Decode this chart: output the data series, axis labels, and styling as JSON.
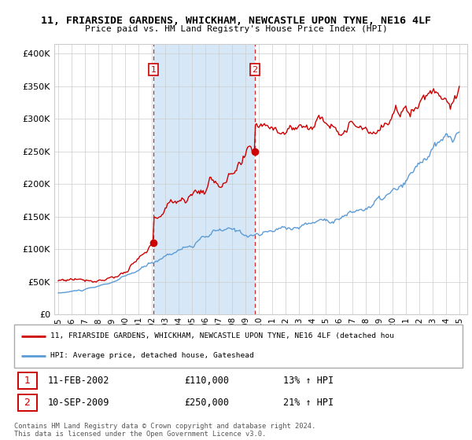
{
  "title_line1": "11, FRIARSIDE GARDENS, WHICKHAM, NEWCASTLE UPON TYNE, NE16 4LF",
  "title_line2": "Price paid vs. HM Land Registry's House Price Index (HPI)",
  "ytick_values": [
    0,
    50000,
    100000,
    150000,
    200000,
    250000,
    300000,
    350000,
    400000
  ],
  "ylim": [
    0,
    415000
  ],
  "hpi_color": "#5b9bd5",
  "hpi_fill_color": "#d6e8f7",
  "price_color": "#cc0000",
  "background_color": "#ffffff",
  "grid_color": "#cccccc",
  "purchase1_x": 2002.12,
  "purchase1_y": 110000,
  "purchase2_x": 2009.7,
  "purchase2_y": 250000,
  "legend_line1": "11, FRIARSIDE GARDENS, WHICKHAM, NEWCASTLE UPON TYNE, NE16 4LF (detached hou",
  "legend_line2": "HPI: Average price, detached house, Gateshead",
  "info1_date": "11-FEB-2002",
  "info1_price": "£110,000",
  "info1_hpi": "13% ↑ HPI",
  "info2_date": "10-SEP-2009",
  "info2_price": "£250,000",
  "info2_hpi": "21% ↑ HPI",
  "footer": "Contains HM Land Registry data © Crown copyright and database right 2024.\nThis data is licensed under the Open Government Licence v3.0.",
  "xtick_years": [
    1995,
    1996,
    1997,
    1998,
    1999,
    2000,
    2001,
    2002,
    2003,
    2004,
    2005,
    2006,
    2007,
    2008,
    2009,
    2010,
    2011,
    2012,
    2013,
    2014,
    2015,
    2016,
    2017,
    2018,
    2019,
    2020,
    2021,
    2022,
    2023,
    2024,
    2025
  ],
  "n_months": 361,
  "start_year": 1995.0,
  "hpi_seed": 10,
  "price_seed": 77
}
